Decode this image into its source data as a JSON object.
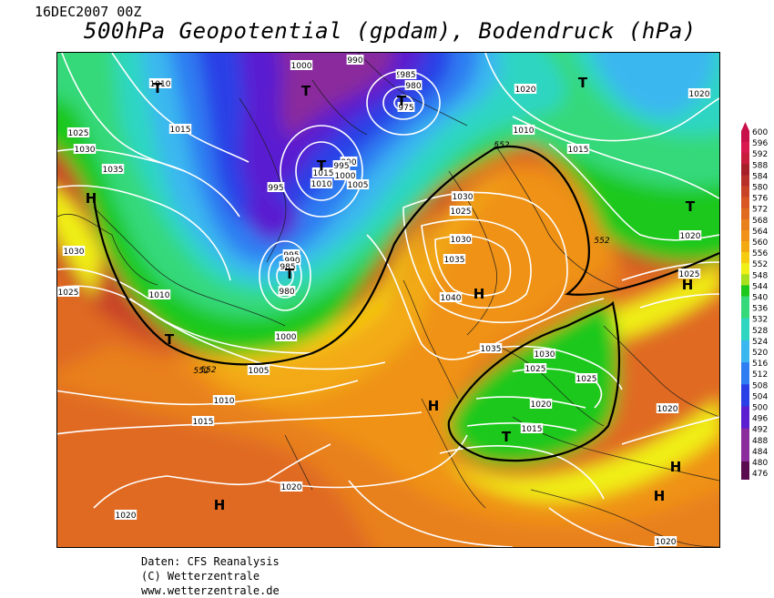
{
  "header": {
    "date": "16DEC2007 00Z",
    "title": "500hPa Geopotential (gpdam), Bodendruck (hPa)"
  },
  "colors": {
    "z476": "#5a0a4e",
    "z488": "#8a2c9c",
    "z496": "#5a1fd0",
    "z504": "#2a40e6",
    "z512": "#2f7df2",
    "z520": "#3bb7f0",
    "z528": "#2ed6c2",
    "z536": "#36d97a",
    "z544": "#1cc81c",
    "z548": "#a8e020",
    "z552": "#f0f018",
    "z556": "#f5cc10",
    "z560": "#f3aa12",
    "z564": "#ef9217",
    "z568": "#e8801c",
    "z572": "#e06a20",
    "z576": "#d85524",
    "z580": "#c94426",
    "z584": "#b8302a",
    "z588": "#a6202a",
    "z592": "#c81c3c",
    "z596": "#d8184e",
    "z600": "#c8104a",
    "isobar": "#ffffff",
    "height_contour": "#000000"
  },
  "legend": {
    "scale": [
      "600",
      "596",
      "592",
      "588",
      "584",
      "580",
      "576",
      "572",
      "568",
      "564",
      "560",
      "556",
      "552",
      "548",
      "544",
      "540",
      "536",
      "532",
      "528",
      "524",
      "520",
      "516",
      "512",
      "508",
      "504",
      "500",
      "496",
      "492",
      "488",
      "484",
      "480",
      "476"
    ]
  },
  "pressure_centers": [
    {
      "kind": "T"
    },
    {
      "kind": "T"
    },
    {
      "kind": "T"
    },
    {
      "kind": "T"
    },
    {
      "kind": "T"
    },
    {
      "kind": "T"
    },
    {
      "kind": "T"
    },
    {
      "kind": "T"
    },
    {
      "kind": "T"
    },
    {
      "kind": "H"
    },
    {
      "kind": "H"
    },
    {
      "kind": "H"
    },
    {
      "kind": "H"
    },
    {
      "kind": "H"
    },
    {
      "kind": "H"
    },
    {
      "kind": "H"
    }
  ],
  "isobar_labels": [
    "1000",
    "985",
    "990",
    "985",
    "980",
    "975",
    "1010",
    "1015",
    "1025",
    "1030",
    "1035",
    "995",
    "1015",
    "1010",
    "990",
    "995",
    "1000",
    "1005",
    "995",
    "990",
    "985",
    "980",
    "1030",
    "1025",
    "1010",
    "1000",
    "1005",
    "1010",
    "1015",
    "1020",
    "1020",
    "1020",
    "1010",
    "1015",
    "1020",
    "1030",
    "1025",
    "1030",
    "1035",
    "1040",
    "1035",
    "1030",
    "1025",
    "1025",
    "1020",
    "1015",
    "1020",
    "1025",
    "1020",
    "1020"
  ],
  "height_labels": [
    "552",
    "552",
    "552",
    "552"
  ],
  "credits": {
    "line1": "Daten: CFS Reanalysis",
    "line2": "(C) Wetterzentrale",
    "line3": "www.wetterzentrale.de"
  }
}
